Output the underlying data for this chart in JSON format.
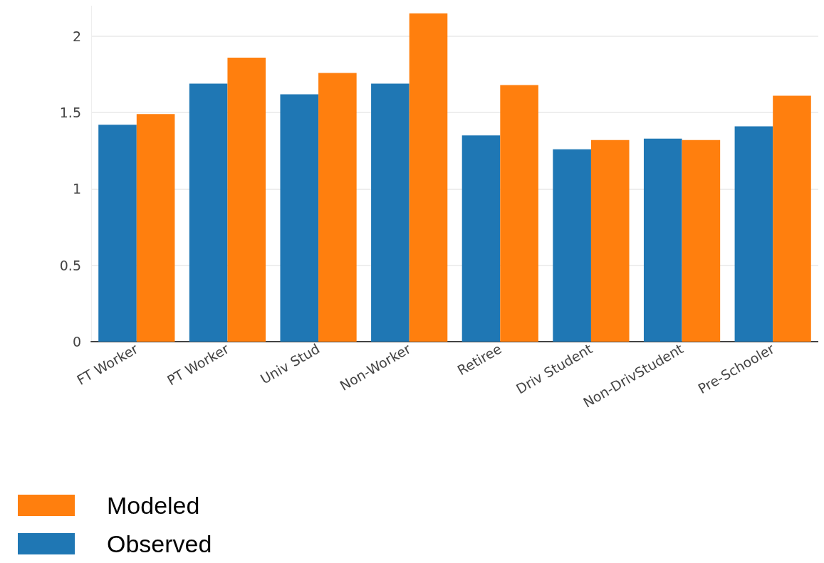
{
  "chart_data": {
    "type": "bar",
    "categories": [
      "FT Worker",
      "PT Worker",
      "Univ Stud",
      "Non-Worker",
      "Retiree",
      "Driv Student",
      "Non-DrivStudent",
      "Pre-Schooler"
    ],
    "series": [
      {
        "name": "Observed",
        "color": "#1f77b4",
        "values": [
          1.42,
          1.69,
          1.62,
          1.69,
          1.35,
          1.26,
          1.33,
          1.41
        ]
      },
      {
        "name": "Modeled",
        "color": "#ff7f0e",
        "values": [
          1.49,
          1.86,
          1.76,
          2.15,
          1.68,
          1.32,
          1.32,
          1.61
        ]
      }
    ],
    "ylim": [
      0,
      2.2
    ],
    "yticks": [
      0,
      0.5,
      1,
      1.5,
      2
    ],
    "grid": "y",
    "legend": "bottom left"
  }
}
